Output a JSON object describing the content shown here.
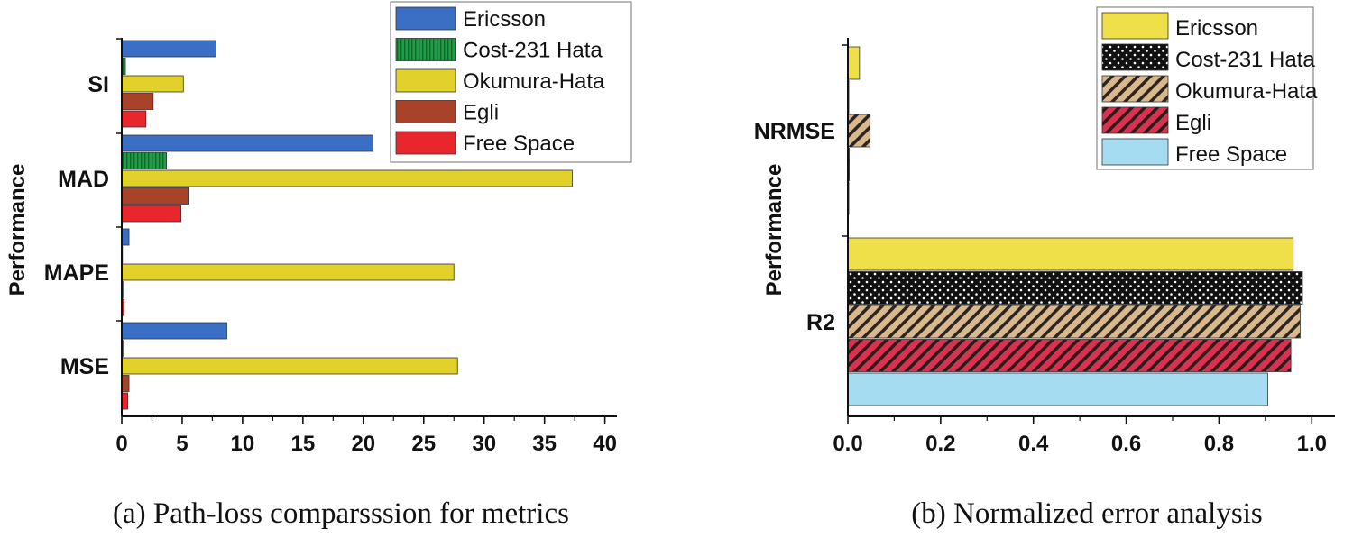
{
  "chart_data": [
    {
      "type": "bar",
      "orientation": "horizontal",
      "caption": "(a) Path-loss comparsssion for metrics",
      "ylabel": "Performance",
      "xlabel": "",
      "xlim": [
        0,
        41
      ],
      "xticks": [
        "0",
        "5",
        "10",
        "15",
        "20",
        "25",
        "30",
        "35",
        "40"
      ],
      "categories": [
        "SI",
        "MAD",
        "MAPE",
        "MSE"
      ],
      "legend_position": "top-right",
      "series": [
        {
          "name": "Ericsson",
          "color": "#3b6fc4",
          "pattern": "solid",
          "values": [
            7.8,
            20.8,
            0.6,
            8.7
          ]
        },
        {
          "name": "Cost-231 Hata",
          "color": "#1f9e46",
          "pattern": "vlines",
          "values": [
            0.3,
            3.7,
            0.05,
            0.1
          ]
        },
        {
          "name": "Okumura-Hata",
          "color": "#e2d12a",
          "pattern": "solid",
          "values": [
            5.1,
            37.3,
            27.5,
            27.8
          ]
        },
        {
          "name": "Egli",
          "color": "#a8432a",
          "pattern": "solid",
          "values": [
            2.6,
            5.5,
            0.1,
            0.6
          ]
        },
        {
          "name": "Free Space",
          "color": "#e8262b",
          "pattern": "solid",
          "values": [
            2.0,
            4.9,
            0.2,
            0.5
          ]
        }
      ]
    },
    {
      "type": "bar",
      "orientation": "horizontal",
      "caption": "(b) Normalized error analysis",
      "ylabel": "Performance",
      "xlabel": "",
      "xlim": [
        0,
        1.05
      ],
      "xticks": [
        "0.0",
        "0.2",
        "0.4",
        "0.6",
        "0.8",
        "1.0"
      ],
      "categories": [
        "NRMSE",
        "R2"
      ],
      "legend_position": "top-right",
      "series": [
        {
          "name": "Ericsson",
          "color": "#efe04a",
          "pattern": "solid",
          "values": [
            0.025,
            0.96
          ]
        },
        {
          "name": "Cost-231 Hata",
          "color": "#111111",
          "pattern": "dots",
          "values": [
            0.002,
            0.98
          ]
        },
        {
          "name": "Okumura-Hata",
          "color": "#d9b88e",
          "pattern": "diag",
          "values": [
            0.048,
            0.975
          ]
        },
        {
          "name": "Egli",
          "color": "#d9324f",
          "pattern": "diag",
          "values": [
            0.003,
            0.955
          ]
        },
        {
          "name": "Free Space",
          "color": "#a6dcf2",
          "pattern": "solid",
          "values": [
            0.002,
            0.905
          ]
        }
      ]
    }
  ]
}
